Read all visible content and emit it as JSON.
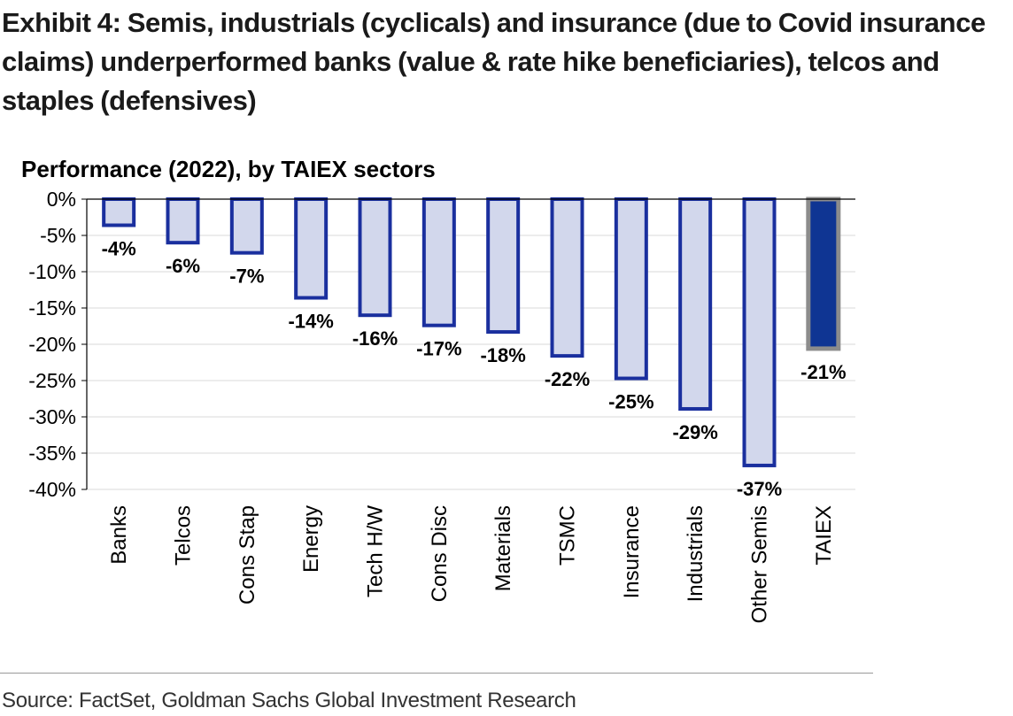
{
  "title": "Exhibit 4: Semis, industrials (cyclicals) and insurance (due to Covid insurance claims) underperformed banks (value & rate hike beneficiaries), telcos and staples (defensives)",
  "source": "Source: FactSet, Goldman Sachs Global Investment Research",
  "chart_data": {
    "type": "bar",
    "title": "Performance (2022), by TAIEX sectors",
    "xlabel": "",
    "ylabel": "",
    "ylim": [
      -40,
      0
    ],
    "yticks": [
      "0%",
      "-5%",
      "-10%",
      "-15%",
      "-20%",
      "-25%",
      "-30%",
      "-35%",
      "-40%"
    ],
    "ytick_values": [
      0,
      -5,
      -10,
      -15,
      -20,
      -25,
      -30,
      -35,
      -40
    ],
    "grid": true,
    "categories": [
      "Banks",
      "Telcos",
      "Cons Stap",
      "Energy",
      "Tech H/W",
      "Cons Disc",
      "Materials",
      "TSMC",
      "Insurance",
      "Industrials",
      "Other Semis",
      "TAIEX"
    ],
    "values": [
      -3.6,
      -6,
      -7.4,
      -13.6,
      -16,
      -17.4,
      -18.3,
      -21.6,
      -24.7,
      -28.9,
      -36.7,
      -20.6
    ],
    "data_labels": [
      "-4%",
      "-6%",
      "-7%",
      "-14%",
      "-16%",
      "-17%",
      "-18%",
      "-22%",
      "-25%",
      "-29%",
      "-37%",
      "-21%"
    ],
    "colors": {
      "sector_fill": "#d2d7ec",
      "sector_edge": "#1a2f9e",
      "index_fill": "#0f3593",
      "index_edge": "#8c8c8c",
      "grid": "#d9d9d9"
    }
  }
}
